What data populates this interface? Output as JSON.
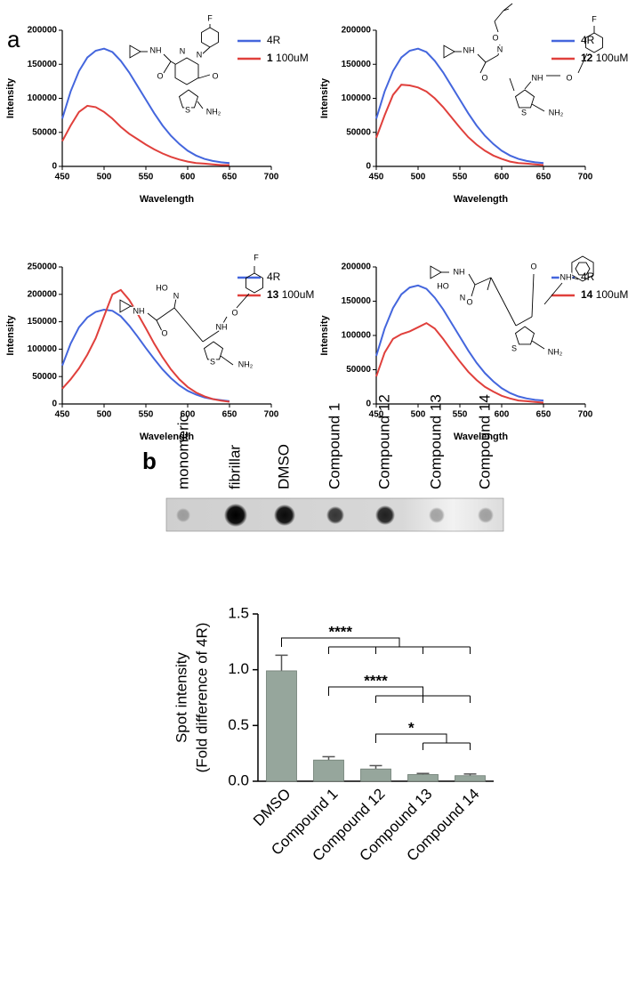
{
  "panel_labels": [
    "a",
    "b"
  ],
  "blot_labels": [
    "monomeric",
    "fibrillar",
    "DMSO",
    "Compound 1",
    "Compound 12",
    "Compound 13",
    "Compound 14"
  ],
  "chart_data": [
    {
      "type": "line",
      "xlabel": "Wavelength",
      "ylabel": "Intensity",
      "x": [
        450,
        460,
        470,
        480,
        490,
        500,
        510,
        520,
        530,
        540,
        550,
        560,
        570,
        580,
        590,
        600,
        610,
        620,
        630,
        640,
        650
      ],
      "series": [
        {
          "name": "4R",
          "color": "#4466dd",
          "values": [
            70000,
            110000,
            140000,
            160000,
            170000,
            173000,
            168000,
            155000,
            138000,
            118000,
            98000,
            78000,
            60000,
            45000,
            33000,
            23000,
            16000,
            11000,
            8000,
            6000,
            5000
          ]
        },
        {
          "name": "1 100uM",
          "color": "#e0403c",
          "values": [
            37000,
            60000,
            80000,
            89000,
            87000,
            80000,
            70000,
            58000,
            48000,
            40000,
            32000,
            25000,
            19000,
            14000,
            10000,
            7000,
            5000,
            4000,
            3000,
            2000,
            2000
          ]
        }
      ],
      "xlim": [
        450,
        700
      ],
      "xticks": [
        450,
        500,
        550,
        600,
        650,
        700
      ],
      "ylim": [
        0,
        200000
      ],
      "yticks": [
        0,
        50000,
        100000,
        150000,
        200000
      ],
      "structure_labels": [
        "F",
        "NH",
        "N",
        "N",
        "O",
        "O",
        "S",
        "NH₂"
      ]
    },
    {
      "type": "line",
      "xlabel": "Wavelength",
      "ylabel": "Intensity",
      "x": [
        450,
        460,
        470,
        480,
        490,
        500,
        510,
        520,
        530,
        540,
        550,
        560,
        570,
        580,
        590,
        600,
        610,
        620,
        630,
        640,
        650
      ],
      "series": [
        {
          "name": "4R",
          "color": "#4466dd",
          "values": [
            70000,
            110000,
            140000,
            160000,
            170000,
            173000,
            168000,
            155000,
            138000,
            118000,
            98000,
            78000,
            60000,
            45000,
            33000,
            23000,
            16000,
            11000,
            8000,
            6000,
            5000
          ]
        },
        {
          "name": "12 100uM",
          "color": "#e0403c",
          "values": [
            42000,
            75000,
            105000,
            120000,
            119000,
            116000,
            110000,
            100000,
            87000,
            72000,
            57000,
            43000,
            32000,
            23000,
            16000,
            11000,
            7000,
            5000,
            4000,
            3000,
            2000
          ]
        }
      ],
      "xlim": [
        450,
        700
      ],
      "xticks": [
        450,
        500,
        550,
        600,
        650,
        700
      ],
      "ylim": [
        0,
        200000
      ],
      "yticks": [
        0,
        50000,
        100000,
        150000,
        200000
      ],
      "structure_labels": [
        "O",
        "N",
        "NH",
        "O",
        "NH",
        "O",
        "F",
        "S",
        "NH₂"
      ]
    },
    {
      "type": "line",
      "xlabel": "Wavelength",
      "ylabel": "Intensity",
      "x": [
        450,
        460,
        470,
        480,
        490,
        500,
        510,
        520,
        530,
        540,
        550,
        560,
        570,
        580,
        590,
        600,
        610,
        620,
        630,
        640,
        650
      ],
      "series": [
        {
          "name": "4R",
          "color": "#4466dd",
          "values": [
            70000,
            110000,
            140000,
            158000,
            168000,
            172000,
            170000,
            160000,
            143000,
            123000,
            102000,
            82000,
            63000,
            47000,
            34000,
            24000,
            17000,
            12000,
            9000,
            7000,
            5000
          ]
        },
        {
          "name": "13 100uM",
          "color": "#e0403c",
          "values": [
            28000,
            45000,
            65000,
            90000,
            120000,
            160000,
            200000,
            208000,
            190000,
            165000,
            138000,
            110000,
            85000,
            63000,
            45000,
            31000,
            21000,
            14000,
            9000,
            6000,
            4000
          ]
        }
      ],
      "xlim": [
        450,
        700
      ],
      "xticks": [
        450,
        500,
        550,
        600,
        650,
        700
      ],
      "ylim": [
        0,
        250000
      ],
      "yticks": [
        0,
        50000,
        100000,
        150000,
        200000,
        250000
      ],
      "structure_labels": [
        "HO",
        "N",
        "NH",
        "O",
        "NH",
        "O",
        "F",
        "S",
        "NH₂"
      ]
    },
    {
      "type": "line",
      "xlabel": "Wavelength",
      "ylabel": "Intensity",
      "x": [
        450,
        460,
        470,
        480,
        490,
        500,
        510,
        520,
        530,
        540,
        550,
        560,
        570,
        580,
        590,
        600,
        610,
        620,
        630,
        640,
        650
      ],
      "series": [
        {
          "name": "4R",
          "color": "#4466dd",
          "values": [
            70000,
            110000,
            140000,
            160000,
            170000,
            173000,
            168000,
            155000,
            138000,
            118000,
            98000,
            78000,
            60000,
            45000,
            33000,
            23000,
            16000,
            11000,
            8000,
            6000,
            5000
          ]
        },
        {
          "name": "14 100uM",
          "color": "#e0403c",
          "values": [
            40000,
            75000,
            95000,
            102000,
            106000,
            112000,
            118000,
            110000,
            95000,
            78000,
            62000,
            47000,
            35000,
            25000,
            18000,
            12000,
            8000,
            5000,
            4000,
            3000,
            2000
          ]
        }
      ],
      "xlim": [
        450,
        700
      ],
      "xticks": [
        450,
        500,
        550,
        600,
        650,
        700
      ],
      "ylim": [
        0,
        200000
      ],
      "yticks": [
        0,
        50000,
        100000,
        150000,
        200000
      ],
      "structure_labels": [
        "HO",
        "N",
        "NH",
        "O",
        "O",
        "NH",
        "S",
        "NH₂"
      ]
    },
    {
      "type": "bar",
      "ylabel": [
        "Spot intensity",
        "(Fold difference of 4R)"
      ],
      "categories": [
        "DMSO",
        "Compound 1",
        "Compound 12",
        "Compound 13",
        "Compound 14"
      ],
      "values": [
        0.99,
        0.19,
        0.11,
        0.06,
        0.05
      ],
      "errors": [
        0.14,
        0.03,
        0.03,
        0.01,
        0.015
      ],
      "color": "#96a69c",
      "ylim": [
        0,
        1.5
      ],
      "yticks": [
        {
          "value": 0,
          "label": "0.0"
        },
        {
          "value": 0.5,
          "label": "0.5"
        },
        {
          "value": 1,
          "label": "1.0"
        },
        {
          "value": 1.5,
          "label": "1.5"
        }
      ],
      "significance": [
        "****",
        "****",
        "*"
      ]
    }
  ]
}
